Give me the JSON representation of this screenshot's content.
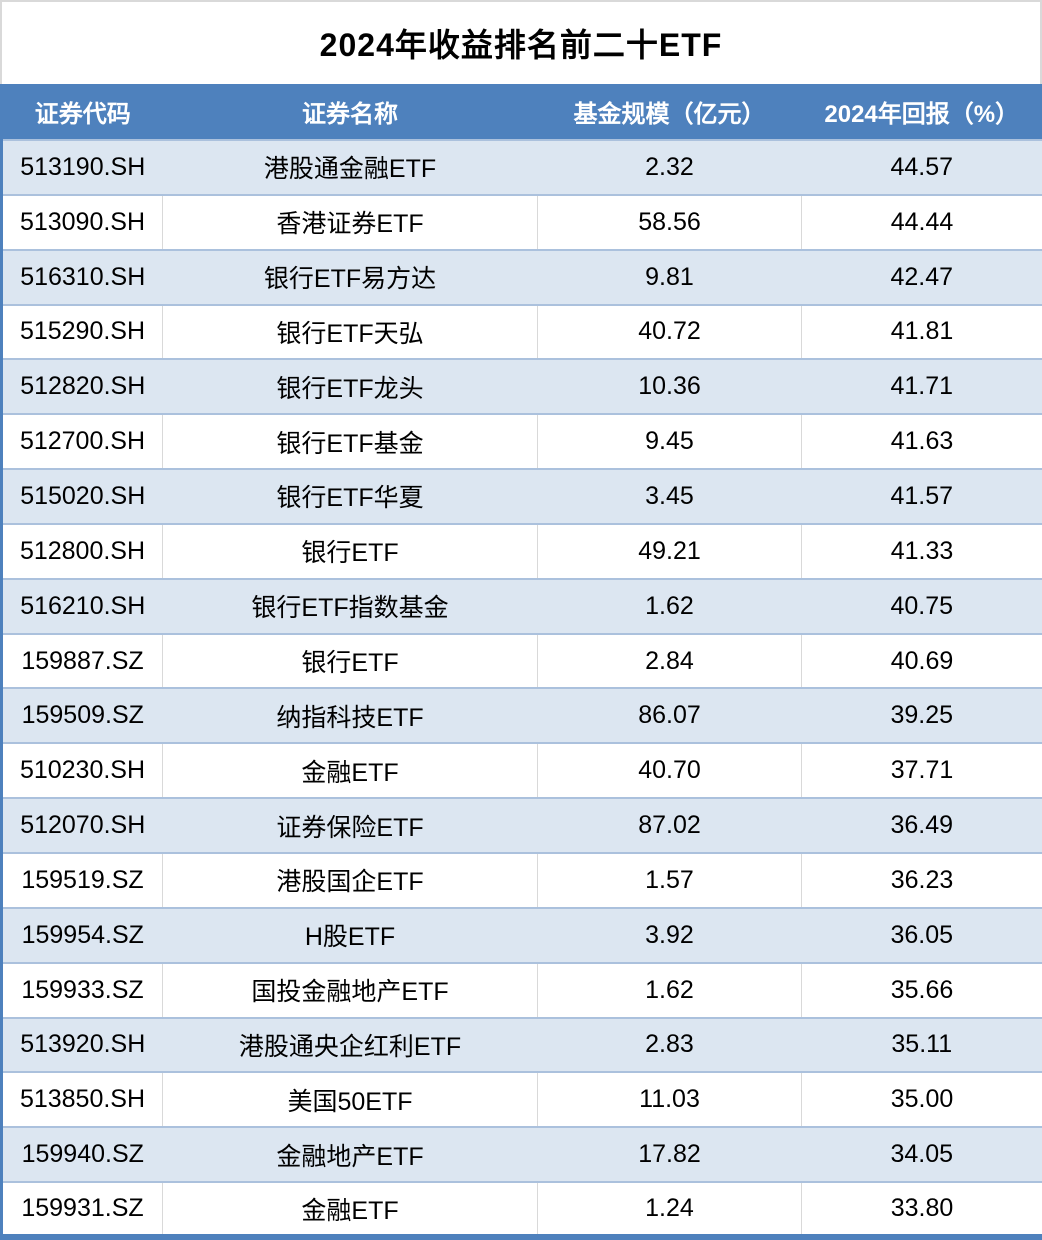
{
  "title": "2024年收益排名前二十ETF",
  "colors": {
    "header_bg": "#4e81bd",
    "band_row_bg": "#dce6f1",
    "plain_row_bg": "#ffffff",
    "outer_border": "#4e81bd",
    "row_separator": "#abc1dd",
    "column_separator": "#d9d9d9",
    "header_text": "#ffffff",
    "body_text": "#000000"
  },
  "chart_data": {
    "type": "table",
    "title": "2024年收益排名前二十ETF",
    "columns": [
      "证券代码",
      "证券名称",
      "基金规模（亿元）",
      "2024年回报（%）"
    ],
    "rows": [
      [
        "513190.SH",
        "港股通金融ETF",
        "2.32",
        "44.57"
      ],
      [
        "513090.SH",
        "香港证券ETF",
        "58.56",
        "44.44"
      ],
      [
        "516310.SH",
        "银行ETF易方达",
        "9.81",
        "42.47"
      ],
      [
        "515290.SH",
        "银行ETF天弘",
        "40.72",
        "41.81"
      ],
      [
        "512820.SH",
        "银行ETF龙头",
        "10.36",
        "41.71"
      ],
      [
        "512700.SH",
        "银行ETF基金",
        "9.45",
        "41.63"
      ],
      [
        "515020.SH",
        "银行ETF华夏",
        "3.45",
        "41.57"
      ],
      [
        "512800.SH",
        "银行ETF",
        "49.21",
        "41.33"
      ],
      [
        "516210.SH",
        "银行ETF指数基金",
        "1.62",
        "40.75"
      ],
      [
        "159887.SZ",
        "银行ETF",
        "2.84",
        "40.69"
      ],
      [
        "159509.SZ",
        "纳指科技ETF",
        "86.07",
        "39.25"
      ],
      [
        "510230.SH",
        "金融ETF",
        "40.70",
        "37.71"
      ],
      [
        "512070.SH",
        "证券保险ETF",
        "87.02",
        "36.49"
      ],
      [
        "159519.SZ",
        "港股国企ETF",
        "1.57",
        "36.23"
      ],
      [
        "159954.SZ",
        "H股ETF",
        "3.92",
        "36.05"
      ],
      [
        "159933.SZ",
        "国投金融地产ETF",
        "1.62",
        "35.66"
      ],
      [
        "513920.SH",
        "港股通央企红利ETF",
        "2.83",
        "35.11"
      ],
      [
        "513850.SH",
        "美国50ETF",
        "11.03",
        "35.00"
      ],
      [
        "159940.SZ",
        "金融地产ETF",
        "17.82",
        "34.05"
      ],
      [
        "159931.SZ",
        "金融ETF",
        "1.24",
        "33.80"
      ]
    ]
  }
}
